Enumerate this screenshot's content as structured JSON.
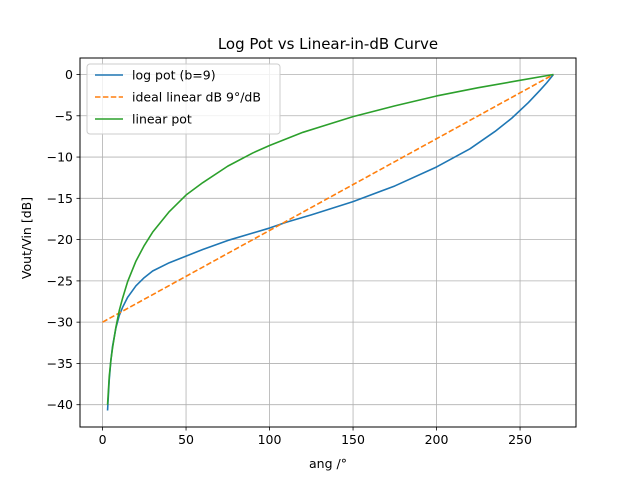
{
  "chart_data": {
    "type": "line",
    "title": "Log Pot vs Linear-in-dB Curve",
    "xlabel": "ang /°",
    "ylabel": "Vout/Vin [dB]",
    "xlim": [
      -13.5,
      283.5
    ],
    "ylim": [
      -42.7,
      2.0
    ],
    "xticks": [
      0,
      50,
      100,
      150,
      200,
      250
    ],
    "yticks": [
      0,
      -5,
      -10,
      -15,
      -20,
      -25,
      -30,
      -35,
      -40
    ],
    "ytick_labels": [
      "0",
      "−5",
      "−10",
      "−15",
      "−20",
      "−25",
      "−30",
      "−35",
      "−40"
    ],
    "grid": true,
    "legend_position": "top-left",
    "series": [
      {
        "name": "log pot (b=9)",
        "color": "#1f77b4",
        "style": "solid",
        "x": [
          3,
          4,
          5,
          6,
          8,
          10,
          12,
          15,
          20,
          25,
          30,
          40,
          50,
          60,
          75,
          90,
          100,
          110,
          125,
          150,
          175,
          200,
          220,
          235,
          245,
          255,
          262,
          266,
          268,
          270
        ],
        "y": [
          -40.7,
          -37.0,
          -34.6,
          -32.9,
          -30.7,
          -29.2,
          -28.2,
          -27.0,
          -25.6,
          -24.6,
          -23.8,
          -22.8,
          -22.0,
          -21.2,
          -20.1,
          -19.2,
          -18.6,
          -17.9,
          -17.0,
          -15.4,
          -13.5,
          -11.2,
          -9.0,
          -6.9,
          -5.3,
          -3.4,
          -1.9,
          -1.0,
          -0.5,
          0.0
        ]
      },
      {
        "name": "ideal linear dB 9°/dB",
        "color": "#ff7f0e",
        "style": "dashed",
        "x": [
          0,
          270
        ],
        "y": [
          -30.0,
          0.0
        ]
      },
      {
        "name": "linear pot",
        "color": "#2ca02c",
        "style": "solid",
        "x": [
          3,
          4,
          5,
          6,
          8,
          10,
          12,
          15,
          20,
          25,
          30,
          40,
          50,
          60,
          75,
          90,
          100,
          120,
          150,
          175,
          200,
          225,
          250,
          270
        ],
        "y": [
          -40.0,
          -36.6,
          -34.6,
          -33.1,
          -30.6,
          -28.6,
          -27.1,
          -25.1,
          -22.6,
          -20.7,
          -19.1,
          -16.6,
          -14.6,
          -13.1,
          -11.1,
          -9.5,
          -8.6,
          -7.0,
          -5.1,
          -3.8,
          -2.6,
          -1.6,
          -0.7,
          0.0
        ]
      }
    ]
  }
}
